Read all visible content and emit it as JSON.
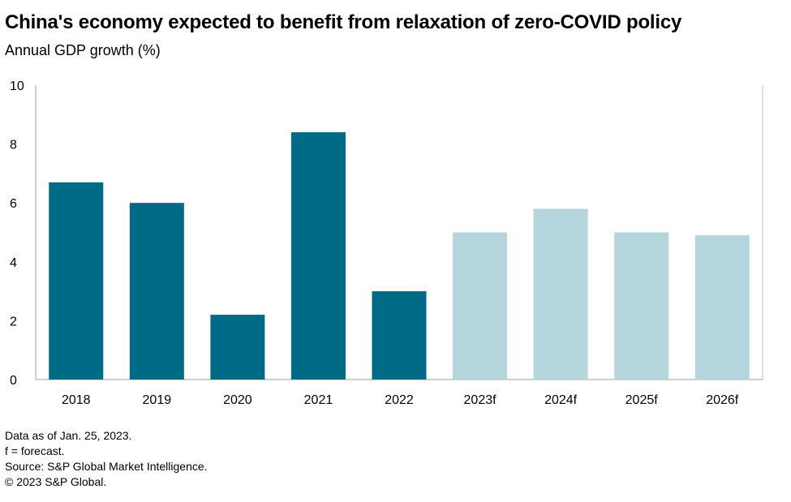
{
  "header": {
    "title": "China's economy expected to benefit from relaxation of zero-COVID policy",
    "subtitle": "Annual GDP growth (%)"
  },
  "chart_data": {
    "type": "bar",
    "categories": [
      "2018",
      "2019",
      "2020",
      "2021",
      "2022",
      "2023f",
      "2024f",
      "2025f",
      "2026f"
    ],
    "values": [
      6.7,
      6.0,
      2.2,
      8.4,
      3.0,
      5.0,
      5.8,
      5.0,
      4.9
    ],
    "ylim": [
      0,
      10
    ],
    "yticks": [
      "0",
      "2",
      "4",
      "6",
      "8",
      "10"
    ],
    "grid": false,
    "colors": {
      "actual": "#006B87",
      "forecast": "#B5D5DD",
      "axis": "#bfbfbf"
    },
    "forecast_from_index": 5
  },
  "notes": {
    "data_as_of": "Data as of Jan. 25, 2023.",
    "forecast_def": "f = forecast.",
    "source": "Source: S&P Global Market Intelligence.",
    "copyright": "© 2023 S&P Global."
  }
}
